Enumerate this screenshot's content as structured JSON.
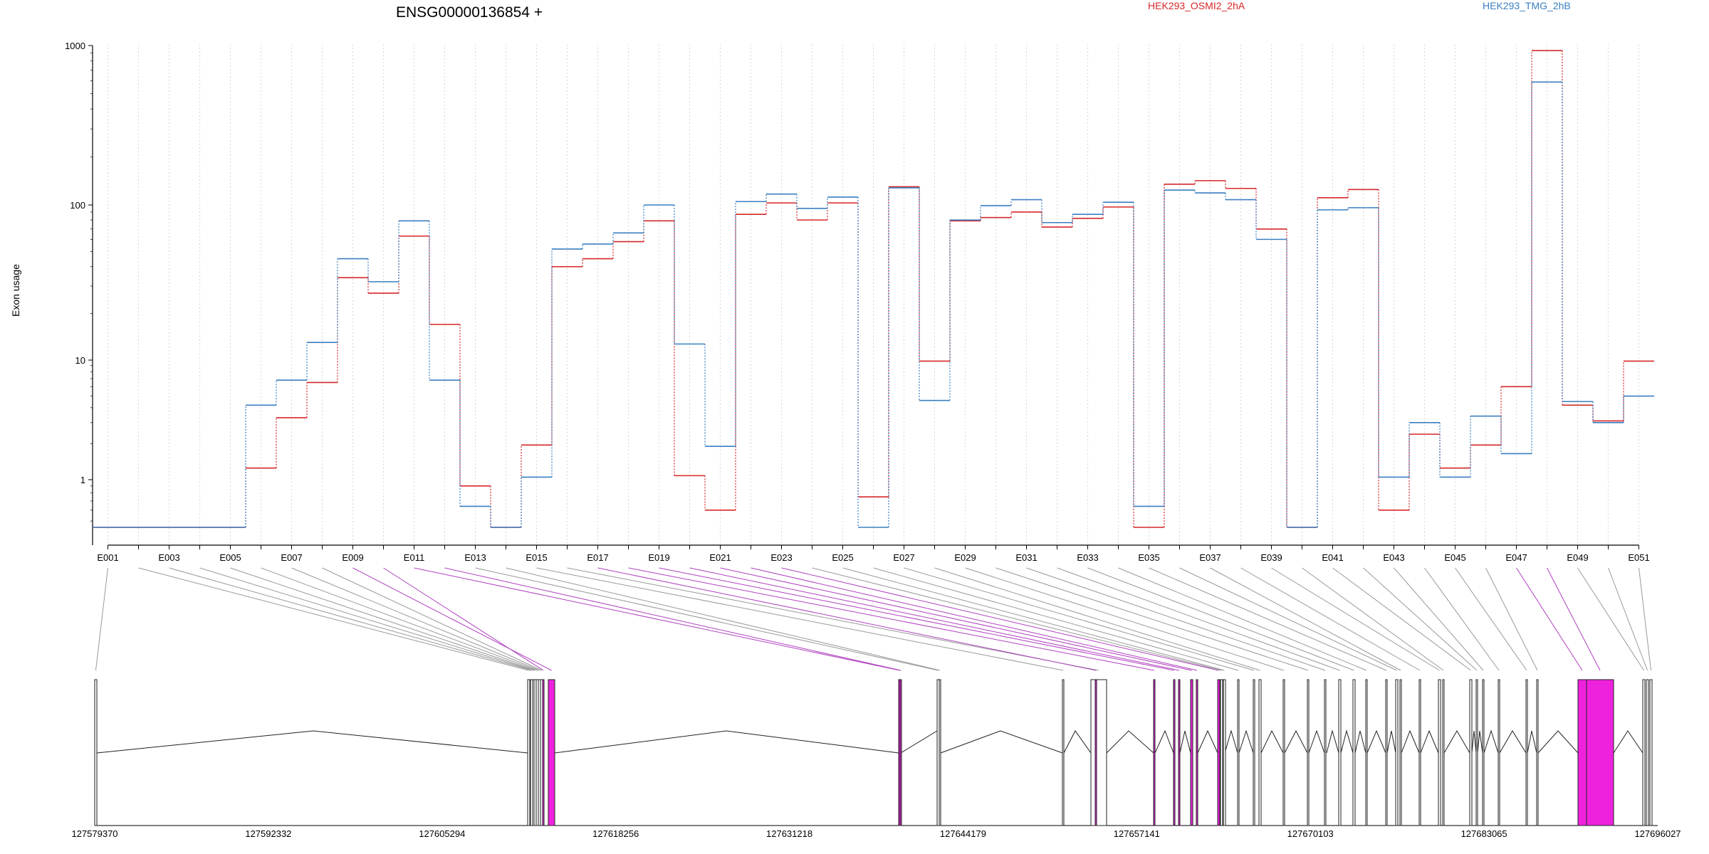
{
  "chart_data": {
    "type": "line",
    "title": "ENSG00000136854 +",
    "ylabel": "Exon usage",
    "xlabel": "",
    "yscale": "log",
    "ylim": [
      0.45,
      1000
    ],
    "yticks": [
      1,
      10,
      100,
      1000
    ],
    "ytick_labels": [
      "1",
      "10",
      "100",
      "1000"
    ],
    "grid": "vertical dotted lines at each exon",
    "legend_placement": "top",
    "categories": [
      "E001",
      "E002",
      "E003",
      "E004",
      "E005",
      "E006",
      "E007",
      "E008",
      "E009",
      "E010",
      "E011",
      "E012",
      "E013",
      "E014",
      "E015",
      "E016",
      "E017",
      "E018",
      "E019",
      "E020",
      "E021",
      "E022",
      "E023",
      "E024",
      "E025",
      "E026",
      "E027",
      "E028",
      "E029",
      "E030",
      "E031",
      "E032",
      "E033",
      "E034",
      "E035",
      "E036",
      "E037",
      "E038",
      "E039",
      "E040",
      "E041",
      "E042",
      "E043",
      "E044",
      "E045",
      "E046",
      "E047",
      "E048",
      "E049",
      "E050",
      "E051"
    ],
    "x_tick_labels": [
      "E001",
      "E003",
      "E005",
      "E007",
      "E009",
      "E011",
      "E013",
      "E015",
      "E017",
      "E019",
      "E021",
      "E023",
      "E025",
      "E027",
      "E029",
      "E031",
      "E033",
      "E035",
      "E037",
      "E039",
      "E041",
      "E043",
      "E045",
      "E047",
      "E049",
      "E051"
    ],
    "series": [
      {
        "name": "HEK293_OSMI2_2hA",
        "color": "#d62728",
        "values": [
          0.45,
          0.45,
          0.45,
          0.45,
          0.45,
          1.25,
          3.3,
          6.5,
          34,
          27,
          63,
          17,
          0.9,
          0.45,
          1.95,
          40,
          45,
          58,
          79,
          1.08,
          0.6,
          87,
          103,
          80,
          103,
          0.75,
          130,
          9.8,
          79,
          83,
          90,
          72,
          82,
          97,
          0.45,
          135,
          142,
          127,
          70,
          0.45,
          111,
          125,
          0.6,
          2.4,
          1.25,
          1.95,
          6.0,
          930,
          4.2,
          3.1,
          9.8
        ]
      },
      {
        "name": "HEK293_TMG_2hB",
        "color": "#3a7fc0",
        "values": [
          0.45,
          0.45,
          0.45,
          0.45,
          0.45,
          4.2,
          6.8,
          13,
          45,
          32,
          79,
          6.8,
          0.64,
          0.45,
          1.05,
          52,
          56,
          66,
          100,
          12.7,
          1.9,
          105,
          117,
          95,
          112,
          0.45,
          128,
          4.6,
          80,
          99,
          108,
          77,
          87,
          104,
          0.64,
          124,
          119,
          108,
          60,
          0.45,
          93,
          96,
          1.05,
          3.0,
          1.05,
          3.4,
          1.65,
          590,
          4.5,
          3.0,
          5.0
        ]
      }
    ],
    "gene_model": {
      "coordinate_labels": [
        "127579370",
        "127592332",
        "127605294",
        "127618256",
        "127631218",
        "127644179",
        "127657141",
        "127670103",
        "127683065",
        "127696027"
      ],
      "highlighted_exon_color": "#ee22dd",
      "highlighted_exons": [
        "E009",
        "E010",
        "E011",
        "E012",
        "E017",
        "E018",
        "E019",
        "E020",
        "E021",
        "E022",
        "E023",
        "E047",
        "E048"
      ]
    }
  }
}
